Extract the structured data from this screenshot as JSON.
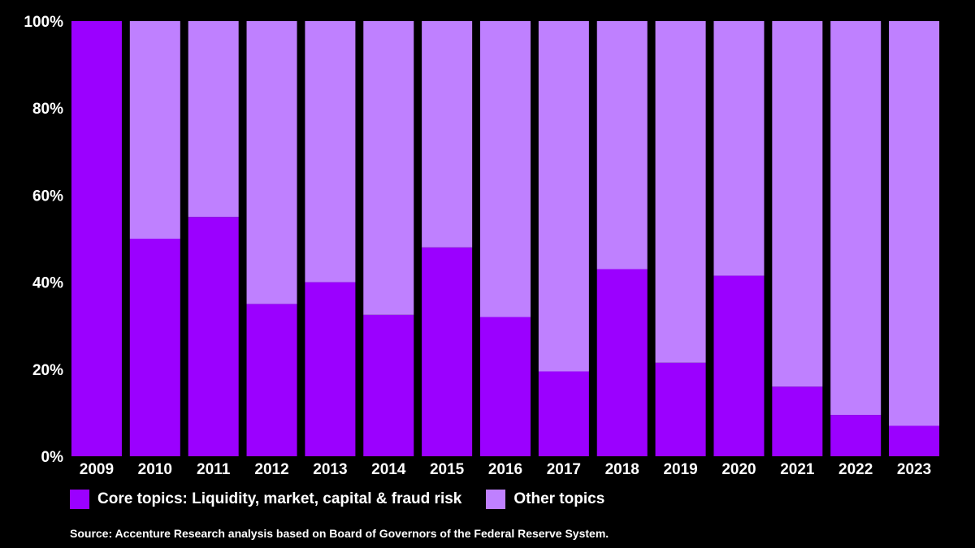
{
  "colors": {
    "background": "#000000",
    "core": "#9b00ff",
    "other": "#bf80ff",
    "text": "#ffffff"
  },
  "legend": {
    "core_label": "Core topics: Liquidity, market, capital & fraud risk",
    "other_label": "Other topics"
  },
  "source": "Source: Accenture Research analysis based on Board of Governors of the Federal Reserve System.",
  "chart_data": {
    "type": "bar",
    "stacked": true,
    "title": "",
    "xlabel": "",
    "ylabel": "",
    "ylim": [
      0,
      100
    ],
    "yticks": [
      0,
      20,
      40,
      60,
      80,
      100
    ],
    "ytick_labels": [
      "0%",
      "20%",
      "40%",
      "60%",
      "80%",
      "100%"
    ],
    "categories": [
      "2009",
      "2010",
      "2011",
      "2012",
      "2013",
      "2014",
      "2015",
      "2016",
      "2017",
      "2018",
      "2019",
      "2020",
      "2021",
      "2022",
      "2023"
    ],
    "series": [
      {
        "name": "Core topics: Liquidity, market, capital & fraud risk",
        "values": [
          100,
          50,
          55,
          35,
          40,
          32.5,
          48,
          32,
          19.5,
          43,
          21.5,
          41.5,
          16,
          9.5,
          7
        ]
      },
      {
        "name": "Other topics",
        "values": [
          0,
          50,
          45,
          65,
          60,
          67.5,
          52,
          68,
          80.5,
          57,
          78.5,
          58.5,
          84,
          90.5,
          93
        ]
      }
    ],
    "legend_position": "bottom-left"
  }
}
